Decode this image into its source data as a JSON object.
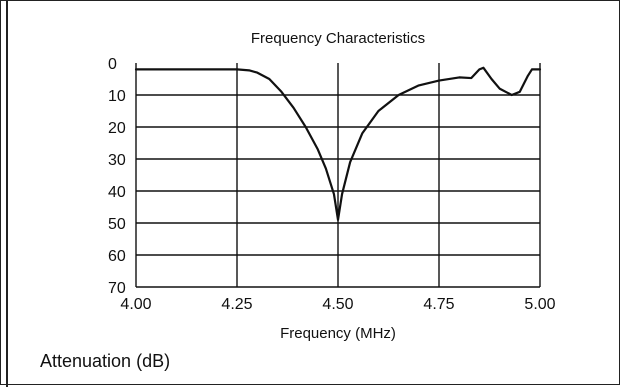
{
  "chart_data": {
    "type": "line",
    "title": "Frequency Characteristics",
    "xlabel": "Frequency (MHz)",
    "ylabel": "Attenuation (dB)",
    "xlim": [
      4.0,
      5.0
    ],
    "ylim": [
      0,
      70
    ],
    "y_inverted": true,
    "grid": true,
    "x_ticks": [
      "4.00",
      "4.25",
      "4.50",
      "4.75",
      "5.00"
    ],
    "y_ticks": [
      "0",
      "10",
      "20",
      "30",
      "40",
      "50",
      "60",
      "70"
    ],
    "series": [
      {
        "x": [
          4.0,
          4.1,
          4.2,
          4.25,
          4.28,
          4.3,
          4.33,
          4.36,
          4.39,
          4.42,
          4.45,
          4.47,
          4.49,
          4.5,
          4.51,
          4.53,
          4.56,
          4.6,
          4.65,
          4.7,
          4.75,
          4.8,
          4.83,
          4.85,
          4.86,
          4.88,
          4.9,
          4.93,
          4.95,
          4.97,
          4.98,
          5.0
        ],
        "y": [
          2,
          2,
          2,
          2,
          2.3,
          3,
          5,
          9,
          14,
          20,
          27,
          33,
          41,
          49,
          41,
          31,
          22,
          15,
          10,
          7,
          5.5,
          4.5,
          4.7,
          2,
          1.5,
          5,
          8,
          10,
          9,
          4,
          2,
          2
        ]
      }
    ]
  }
}
